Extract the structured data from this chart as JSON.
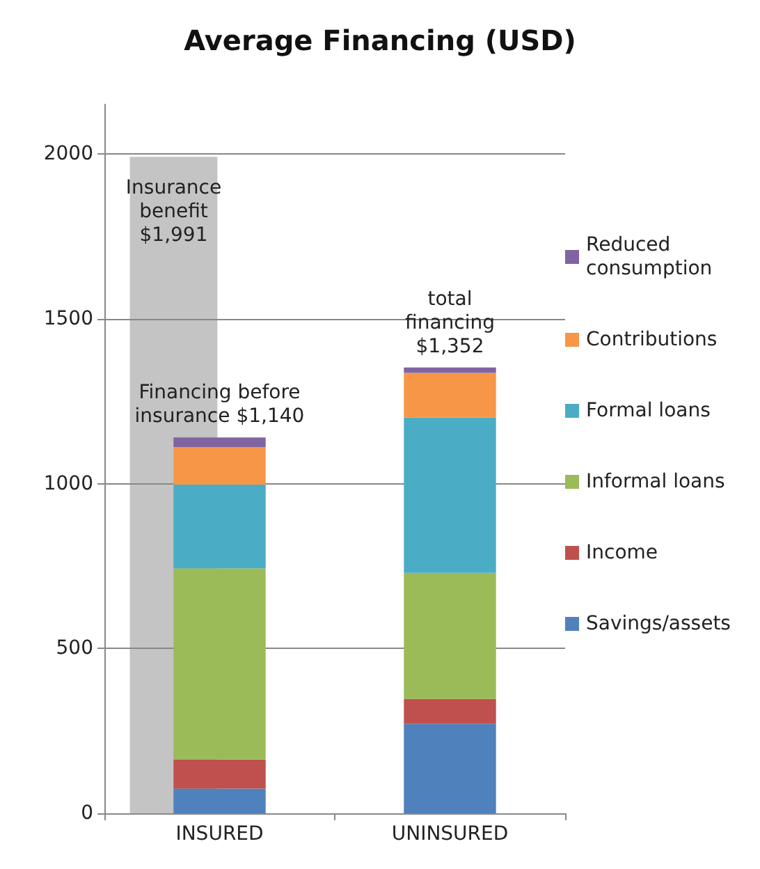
{
  "chart_data": [
    {
      "type": "bar",
      "title": "Average Financing (USD)",
      "categories": [
        "INSURED",
        "UNINSURED"
      ],
      "stacked": true,
      "series": [
        {
          "name": "Savings/assets",
          "color": "#4f81bd",
          "values": [
            75,
            271
          ]
        },
        {
          "name": "Income",
          "color": "#c0504d",
          "values": [
            88,
            76
          ]
        },
        {
          "name": "Informal loans",
          "color": "#9bbb59",
          "values": [
            580,
            382
          ]
        },
        {
          "name": "Formal loans",
          "color": "#4bacc6",
          "values": [
            254,
            471
          ]
        },
        {
          "name": "Contributions",
          "color": "#f79646",
          "values": [
            114,
            136
          ]
        },
        {
          "name": "Reduced consumption",
          "color": "#8064a2",
          "values": [
            29,
            16
          ]
        }
      ],
      "totals": [
        "Financing before insurance $1,140",
        "total financing $1,352"
      ],
      "ylim": [
        0,
        2150
      ],
      "yticks": [
        0,
        500,
        1000,
        1500,
        2000
      ],
      "grid": "y",
      "legend": "right"
    },
    {
      "type": "bar",
      "categories": [
        null,
        null
      ],
      "series": [
        {
          "name": "Insurance benefit",
          "color": "#c4c4c4",
          "values": [
            1991,
            null
          ],
          "value_labels": [
            "$1,991",
            null
          ]
        }
      ],
      "ylim": [
        0,
        2150
      ],
      "tick_labels": false
    }
  ]
}
